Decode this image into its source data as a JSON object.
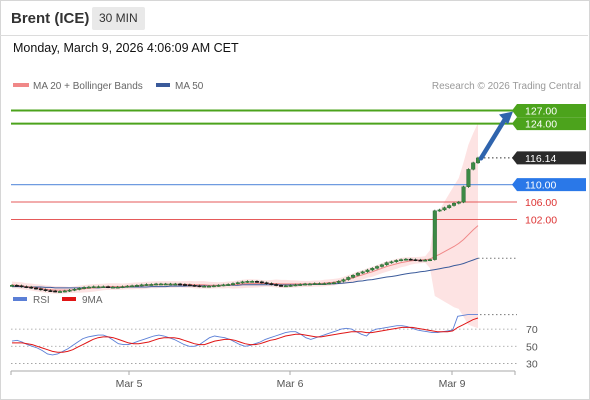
{
  "header": {
    "title": "Brent (ICE)",
    "timeframe": "30 MIN",
    "timestamp": "Monday, March 9, 2026 4:06:09 AM CET"
  },
  "colors": {
    "ma20": "#f08888",
    "ma50": "#3a5a9a",
    "bollinger_fill": "#fde3e3",
    "green": "#4ca31c",
    "blue_label": "#2a78e8",
    "red_level": "#e55a5a",
    "price_tag": "#2b2b2b",
    "arrow": "#2f64ad",
    "rsi": "#5b7fd6",
    "rsi_ma": "#e01515"
  },
  "chart_data": [
    {
      "type": "candlestick",
      "legend": [
        {
          "name": "MA 20 + Bollinger Bands",
          "color": "#f08888"
        },
        {
          "name": "MA 50",
          "color": "#3a5a9a"
        }
      ],
      "credit": "Research © 2026 Trading Central",
      "x_ticks": [
        "Mar 5",
        "Mar 6",
        "Mar 9"
      ],
      "ylim": [
        86.5,
        128.5
      ],
      "grid": false,
      "closes": [
        86.9,
        86.8,
        86.6,
        86.5,
        86.3,
        86.1,
        85.9,
        85.7,
        85.6,
        85.5,
        85.5,
        85.6,
        85.8,
        86.0,
        86.2,
        86.4,
        86.5,
        86.6,
        86.6,
        86.6,
        86.5,
        86.5,
        86.5,
        86.6,
        86.7,
        86.8,
        86.9,
        87.0,
        87.1,
        87.1,
        87.2,
        87.2,
        87.2,
        87.2,
        87.2,
        87.1,
        87.0,
        86.9,
        86.8,
        86.7,
        86.7,
        86.7,
        86.8,
        86.9,
        87.0,
        87.1,
        87.3,
        87.5,
        87.7,
        87.8,
        87.8,
        87.7,
        87.5,
        87.3,
        87.1,
        86.9,
        86.8,
        86.8,
        86.9,
        87.0,
        87.1,
        87.2,
        87.2,
        87.3,
        87.3,
        87.3,
        87.4,
        87.5,
        87.8,
        88.2,
        88.7,
        89.2,
        89.7,
        90.0,
        90.4,
        90.8,
        91.2,
        91.6,
        92.1,
        92.3,
        92.6,
        92.8,
        92.9,
        92.8,
        92.7,
        92.6,
        92.7,
        92.8,
        104.0,
        104.2,
        104.7,
        105.2,
        105.7,
        106.0,
        109.5,
        113.5,
        115.0,
        116.14
      ],
      "ma20": [
        87.0,
        86.9,
        86.8,
        86.6,
        86.5,
        86.3,
        86.2,
        86.0,
        85.9,
        85.8,
        85.8,
        85.8,
        85.8,
        85.9,
        86.0,
        86.1,
        86.2,
        86.3,
        86.4,
        86.5,
        86.6,
        86.6,
        86.6,
        86.6,
        86.7,
        86.7,
        86.8,
        86.8,
        86.9,
        87.0,
        87.0,
        87.1,
        87.1,
        87.1,
        87.1,
        87.1,
        87.1,
        87.1,
        87.0,
        87.0,
        87.0,
        86.9,
        86.9,
        86.9,
        86.9,
        87.0,
        87.0,
        87.1,
        87.2,
        87.3,
        87.3,
        87.3,
        87.3,
        87.3,
        87.3,
        87.3,
        87.2,
        87.2,
        87.2,
        87.2,
        87.2,
        87.2,
        87.2,
        87.3,
        87.3,
        87.4,
        87.5,
        87.6,
        87.8,
        88.0,
        88.3,
        88.6,
        89.0,
        89.3,
        89.7,
        90.0,
        90.4,
        90.8,
        91.2,
        91.5,
        91.8,
        92.1,
        92.3,
        92.5,
        92.6,
        92.7,
        92.8,
        92.9,
        93.5,
        94.0,
        94.6,
        95.2,
        95.8,
        96.5,
        97.4,
        98.5,
        99.6,
        100.6
      ],
      "ma50": [
        86.6,
        86.6,
        86.6,
        86.5,
        86.5,
        86.5,
        86.5,
        86.4,
        86.4,
        86.3,
        86.3,
        86.3,
        86.3,
        86.3,
        86.3,
        86.3,
        86.3,
        86.3,
        86.3,
        86.4,
        86.4,
        86.4,
        86.4,
        86.4,
        86.5,
        86.5,
        86.5,
        86.5,
        86.5,
        86.6,
        86.6,
        86.6,
        86.6,
        86.7,
        86.7,
        86.7,
        86.7,
        86.8,
        86.8,
        86.8,
        86.8,
        86.8,
        86.8,
        86.9,
        86.9,
        86.9,
        86.9,
        86.9,
        87.0,
        87.0,
        87.0,
        87.0,
        87.0,
        87.0,
        87.0,
        87.0,
        87.0,
        87.0,
        87.0,
        87.0,
        87.0,
        87.1,
        87.1,
        87.1,
        87.1,
        87.1,
        87.2,
        87.2,
        87.3,
        87.4,
        87.5,
        87.6,
        87.8,
        87.9,
        88.1,
        88.2,
        88.4,
        88.6,
        88.8,
        88.9,
        89.1,
        89.3,
        89.5,
        89.7,
        89.8,
        90.0,
        90.1,
        90.3,
        90.5,
        90.7,
        90.9,
        91.1,
        91.4,
        91.6,
        91.9,
        92.3,
        92.7,
        93.1
      ],
      "levels": [
        {
          "value": 127.0,
          "label": "127.00",
          "kind": "resistance-green"
        },
        {
          "value": 124.0,
          "label": "124.00",
          "kind": "resistance-green"
        },
        {
          "value": 116.14,
          "label": "116.14",
          "kind": "last-price"
        },
        {
          "value": 110.0,
          "label": "110.00",
          "kind": "pivot-blue"
        },
        {
          "value": 106.0,
          "label": "106.00",
          "kind": "support-red"
        },
        {
          "value": 102.0,
          "label": "102.00",
          "kind": "support-red"
        }
      ],
      "arrow": {
        "from": 116.5,
        "to": 127.0
      }
    },
    {
      "type": "line",
      "legend": [
        {
          "name": "RSI",
          "color": "#5b7fd6"
        },
        {
          "name": "9MA",
          "color": "#e01515"
        }
      ],
      "ylim": [
        20,
        90
      ],
      "y_ticks": [
        70,
        50,
        30
      ],
      "rsi": [
        56,
        57,
        55,
        52,
        50,
        48,
        45,
        41,
        40,
        41,
        44,
        47,
        51,
        55,
        59,
        61,
        62,
        63,
        63,
        61,
        57,
        53,
        52,
        52,
        54,
        56,
        58,
        60,
        62,
        63,
        62,
        60,
        58,
        55,
        52,
        50,
        50,
        52,
        56,
        60,
        62,
        61,
        60,
        58,
        55,
        52,
        50,
        51,
        53,
        55,
        58,
        60,
        62,
        64,
        66,
        67,
        67,
        64,
        60,
        58,
        60,
        62,
        64,
        66,
        68,
        70,
        71,
        70,
        67,
        64,
        62,
        68,
        70,
        71,
        72,
        73,
        74,
        74,
        73,
        71,
        69,
        68,
        67,
        66,
        66,
        67,
        68,
        69,
        85,
        86,
        87,
        87,
        87
      ],
      "ma9": [
        54,
        54,
        54,
        53,
        52,
        50,
        48,
        46,
        44,
        43,
        43,
        44,
        46,
        49,
        52,
        55,
        58,
        60,
        61,
        61,
        60,
        58,
        56,
        54,
        53,
        53,
        54,
        55,
        57,
        59,
        60,
        60,
        60,
        59,
        57,
        55,
        53,
        52,
        52,
        54,
        56,
        57,
        58,
        58,
        57,
        55,
        53,
        52,
        52,
        53,
        55,
        57,
        58,
        60,
        62,
        63,
        64,
        64,
        63,
        62,
        61,
        61,
        62,
        63,
        64,
        65,
        66,
        67,
        67,
        67,
        66,
        66,
        67,
        68,
        69,
        70,
        71,
        72,
        72,
        72,
        71,
        70,
        69,
        68,
        67,
        67,
        67,
        68,
        72,
        75,
        78,
        81,
        83
      ]
    }
  ]
}
